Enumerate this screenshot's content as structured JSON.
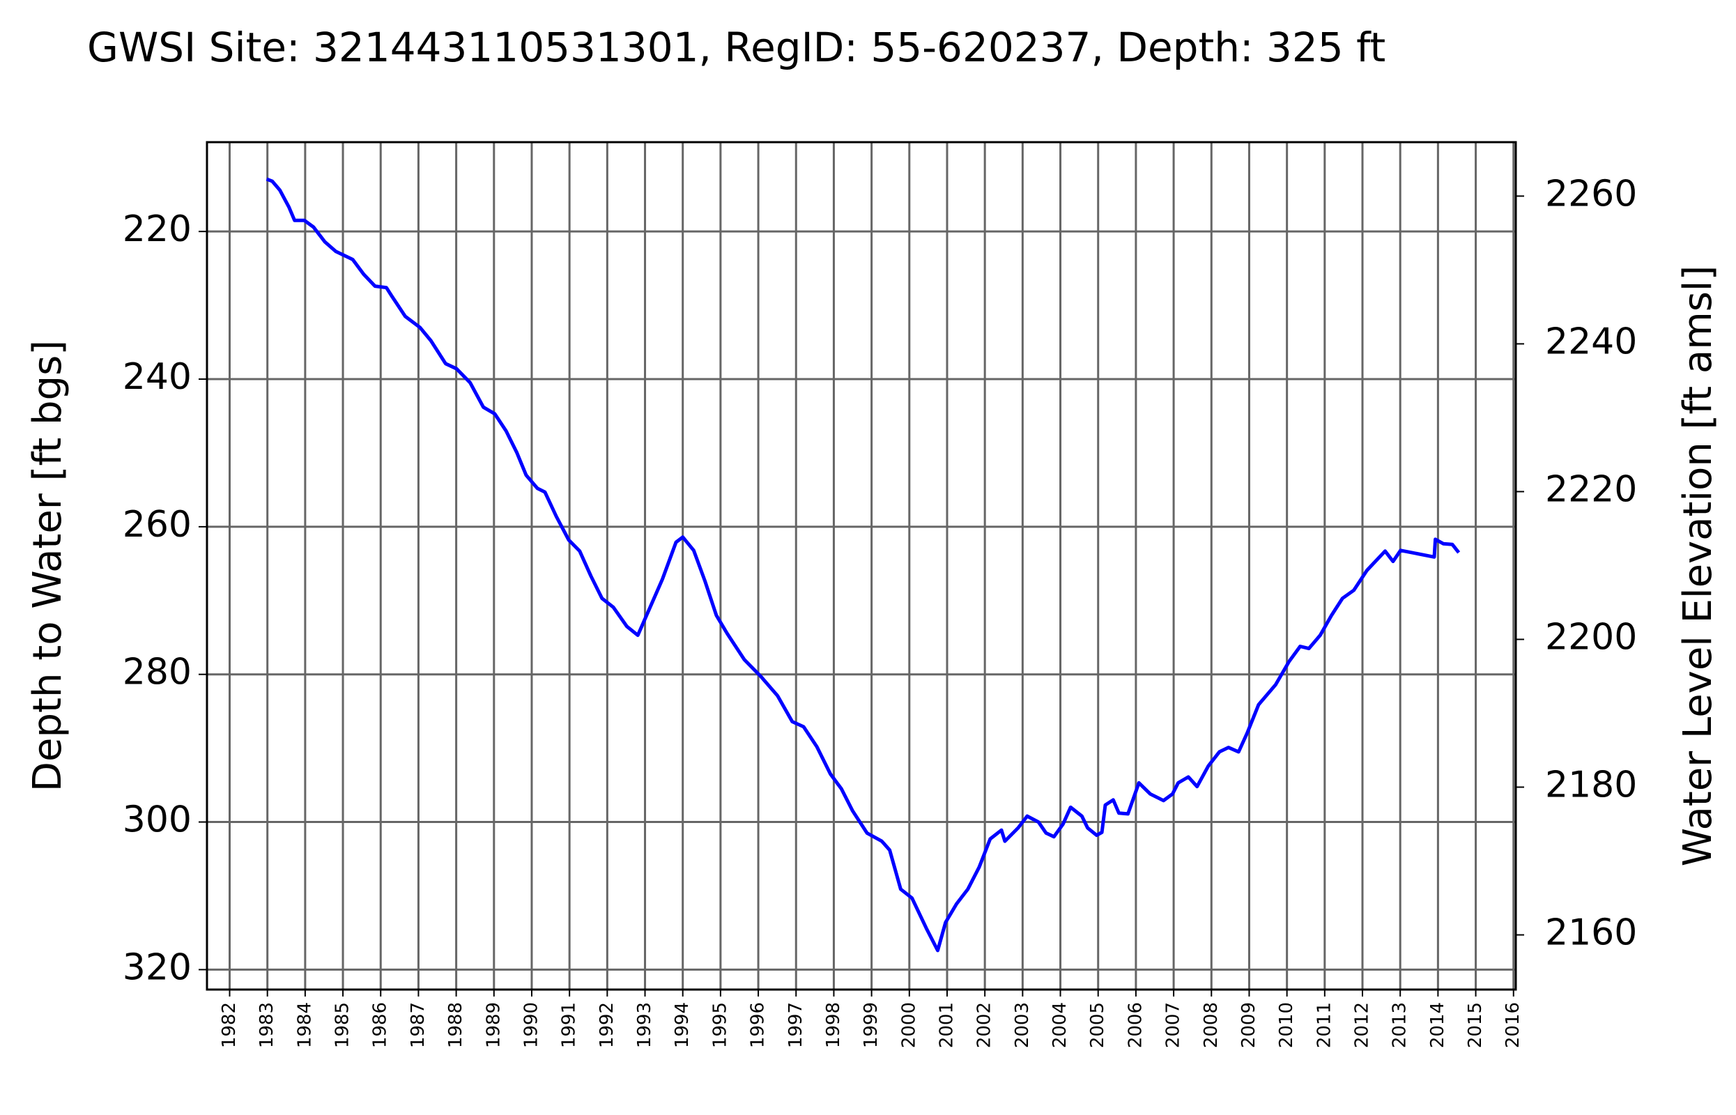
{
  "chart_data": {
    "type": "line",
    "title": "GWSI Site: 321443110531301, RegID: 55-620237, Depth: 325 ft",
    "ylabel": "Depth to Water [ft bgs]",
    "y2label": "Water Level Elevation [ft amsl]",
    "y2color": "#008000",
    "grid": true,
    "xlim": [
      1981.4,
      2016.06
    ],
    "xticks": [
      1982,
      1983,
      1984,
      1985,
      1986,
      1987,
      1988,
      1989,
      1990,
      1991,
      1992,
      1993,
      1994,
      1995,
      1996,
      1997,
      1998,
      1999,
      2000,
      2001,
      2002,
      2003,
      2004,
      2005,
      2006,
      2007,
      2008,
      2009,
      2010,
      2011,
      2012,
      2013,
      2014,
      2015,
      2016
    ],
    "ylim": [
      322.7,
      207.9
    ],
    "yticks": [
      220,
      240,
      260,
      280,
      300,
      320
    ],
    "y2lim": [
      2152.6,
      2267.3
    ],
    "y2ticks": [
      2160,
      2180,
      2200,
      2220,
      2240,
      2260
    ],
    "x": [
      1982.98,
      1983.13,
      1983.33,
      1983.57,
      1983.72,
      1983.98,
      1984.22,
      1984.52,
      1984.81,
      1985.26,
      1985.55,
      1985.85,
      1986.15,
      1986.3,
      1986.65,
      1987.04,
      1987.33,
      1987.72,
      1988.01,
      1988.37,
      1988.72,
      1989.02,
      1989.32,
      1989.61,
      1989.85,
      1990.15,
      1990.35,
      1990.65,
      1990.98,
      1991.27,
      1991.57,
      1991.86,
      1992.16,
      1992.52,
      1992.81,
      1993.11,
      1993.46,
      1993.82,
      1994.0,
      1994.29,
      1994.59,
      1994.89,
      1995.18,
      1995.63,
      1996.07,
      1996.51,
      1996.9,
      1997.2,
      1997.55,
      1997.91,
      1998.2,
      1998.5,
      1998.88,
      1999.27,
      1999.48,
      1999.77,
      2000.07,
      2000.45,
      2000.75,
      2000.96,
      2001.25,
      2001.55,
      2001.85,
      2002.14,
      2002.44,
      2002.53,
      2002.88,
      2003.12,
      2003.42,
      2003.62,
      2003.83,
      2004.07,
      2004.27,
      2004.57,
      2004.72,
      2004.96,
      2005.1,
      2005.19,
      2005.4,
      2005.55,
      2005.79,
      2006.08,
      2006.38,
      2006.73,
      2006.97,
      2007.12,
      2007.39,
      2007.62,
      2007.92,
      2008.21,
      2008.45,
      2008.72,
      2008.95,
      2009.25,
      2009.7,
      2010.05,
      2010.35,
      2010.58,
      2010.88,
      2011.18,
      2011.47,
      2011.77,
      2012.12,
      2012.6,
      2012.81,
      2013.01,
      2013.9,
      2013.93,
      2014.14,
      2014.38,
      2014.55
    ],
    "series": [
      {
        "name": "Depth to Water",
        "color": "#0000ff",
        "values": [
          212.9,
          213.2,
          214.4,
          216.7,
          218.5,
          218.5,
          219.4,
          221.4,
          222.7,
          223.8,
          225.8,
          227.4,
          227.6,
          228.8,
          231.5,
          233.0,
          234.8,
          237.9,
          238.6,
          240.5,
          243.8,
          244.7,
          247.0,
          250.0,
          253.0,
          254.8,
          255.3,
          258.6,
          261.8,
          263.3,
          266.7,
          269.7,
          270.9,
          273.5,
          274.7,
          271.2,
          267.1,
          262.1,
          261.4,
          263.2,
          267.4,
          272.0,
          274.5,
          278.0,
          280.3,
          282.9,
          286.4,
          287.1,
          289.8,
          293.5,
          295.5,
          298.5,
          301.5,
          302.6,
          303.8,
          309.1,
          310.3,
          314.4,
          317.4,
          313.6,
          311.1,
          309.1,
          306.1,
          302.3,
          301.1,
          302.6,
          300.8,
          299.2,
          300.0,
          301.5,
          302.0,
          300.3,
          298.0,
          299.2,
          300.8,
          301.8,
          301.4,
          297.7,
          297.0,
          298.8,
          298.9,
          294.7,
          296.2,
          297.1,
          296.2,
          294.7,
          293.9,
          295.2,
          292.4,
          290.5,
          289.9,
          290.5,
          287.9,
          284.1,
          281.4,
          278.3,
          276.2,
          276.5,
          274.7,
          272.0,
          269.7,
          268.6,
          265.9,
          263.3,
          264.7,
          263.2,
          264.1,
          261.7,
          262.3,
          262.4,
          263.5
        ]
      }
    ]
  }
}
